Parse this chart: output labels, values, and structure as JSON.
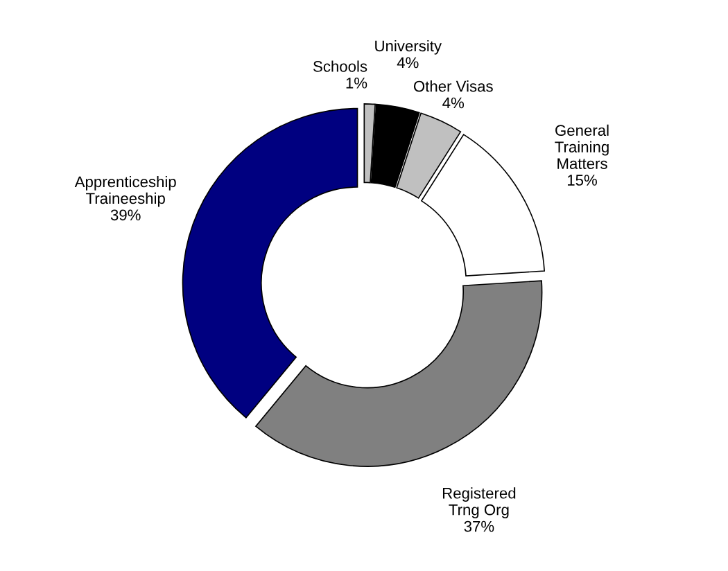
{
  "chart_data": {
    "type": "donut",
    "categories": [
      "Schools",
      "University",
      "Other Visas",
      "General\nTraining\nMatters",
      "Registered\nTrng Org",
      "Apprenticeship\nTraineeship"
    ],
    "values": [
      1,
      4,
      4,
      15,
      37,
      39
    ],
    "value_labels": [
      "1%",
      "4%",
      "4%",
      "15%",
      "37%",
      "39%"
    ],
    "colors": [
      "#c0c0c0",
      "#000000",
      "#c0c0c0",
      "#ffffff",
      "#808080",
      "#000080"
    ]
  }
}
